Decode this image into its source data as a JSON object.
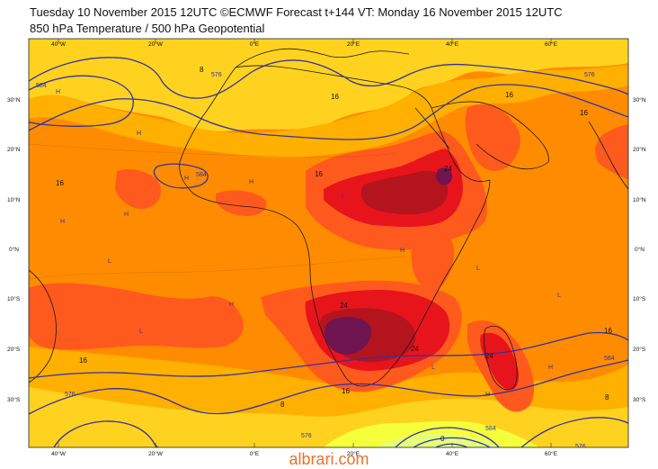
{
  "header": {
    "line1": "Tuesday 10 November 2015 12UTC ©ECMWF Forecast t+144 VT: Monday 16 November 2015 12UTC",
    "line2": "850 hPa Temperature / 500 hPa Geopotential"
  },
  "axes": {
    "lon_labels": [
      "40°W",
      "20°W",
      "0°E",
      "20°E",
      "40°E",
      "60°E"
    ],
    "lat_labels": [
      "30°N",
      "20°N",
      "10°N",
      "0°N",
      "10°S",
      "20°S",
      "30°S"
    ]
  },
  "temperature_labels": [
    "16",
    "16",
    "16",
    "16",
    "16",
    "16",
    "16",
    "24",
    "24",
    "24",
    "24",
    "16",
    "8",
    "8",
    "8",
    "0"
  ],
  "geopotential_labels": [
    "584",
    "576",
    "576",
    "584",
    "584",
    "576",
    "576",
    "584",
    "576"
  ],
  "pressure_centers": [
    "H",
    "L"
  ],
  "colors": {
    "ocean_base": "#ff8c00",
    "cool_band": "#ffd21f",
    "warm": "#ff5a1e",
    "hot": "#e8141c",
    "very_hot": "#b4141e",
    "extreme": "#6e1450",
    "contour": "#3232a0"
  },
  "watermark": "albrari.com"
}
